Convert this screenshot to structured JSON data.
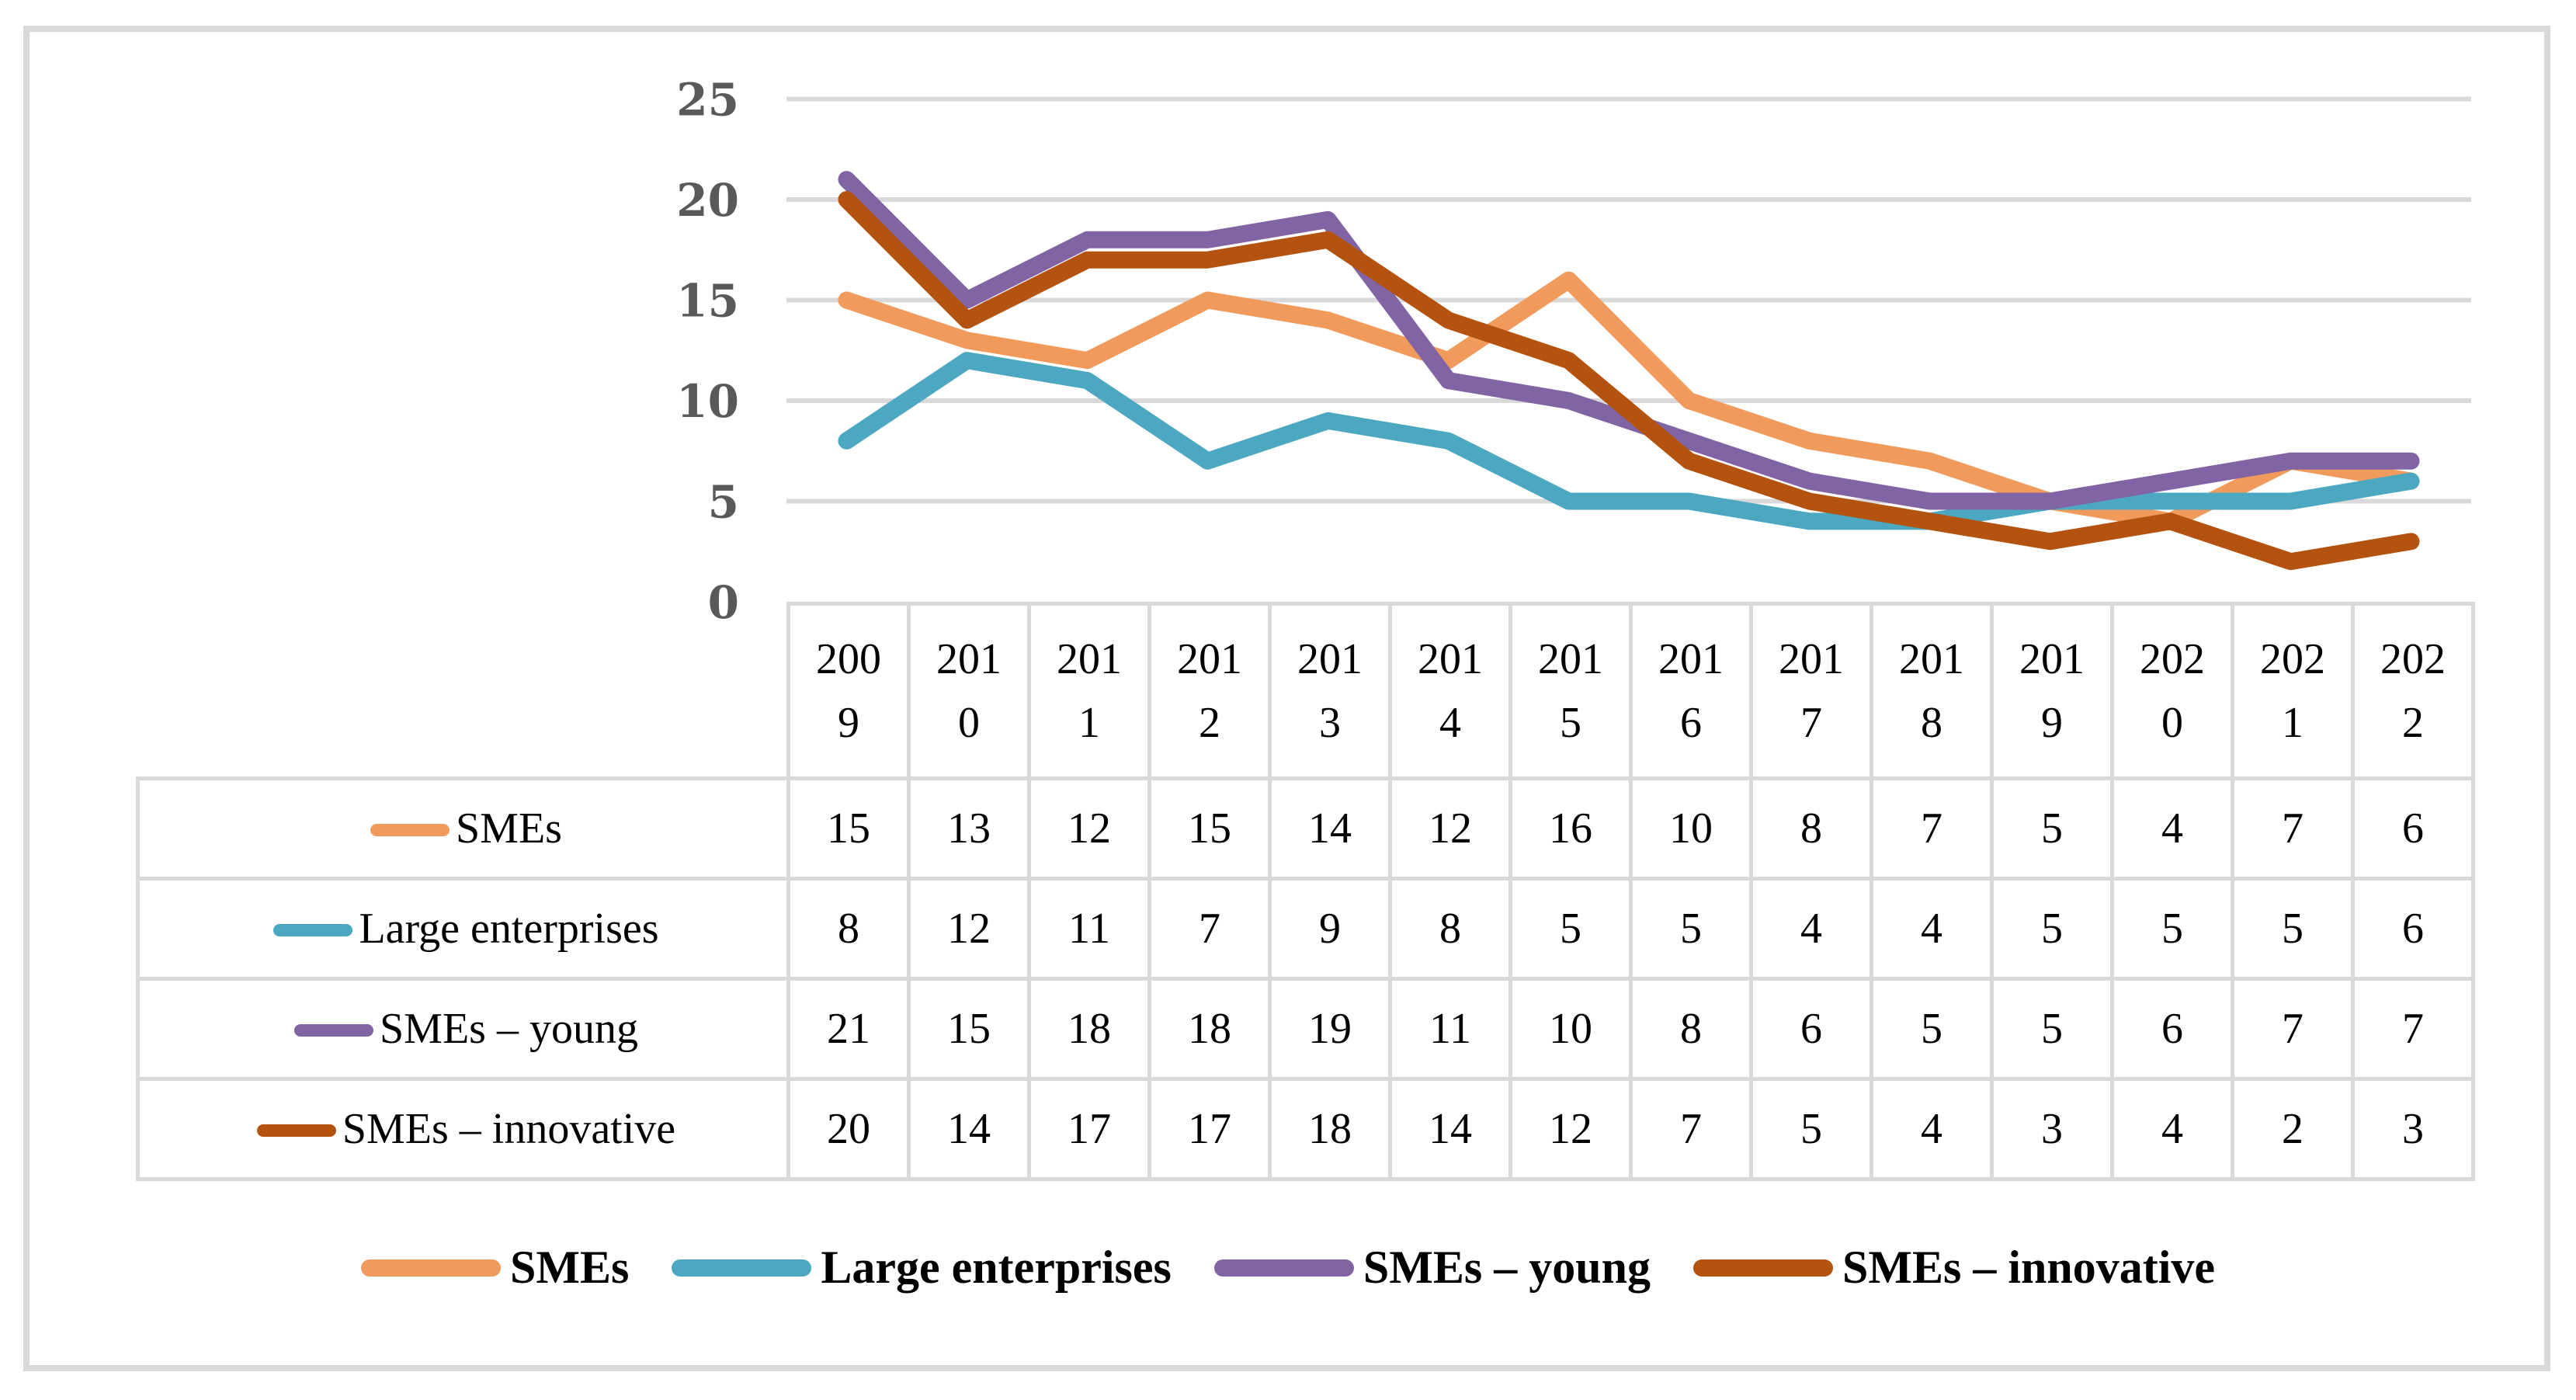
{
  "chart_data": {
    "type": "line",
    "title": "",
    "xlabel": "",
    "ylabel": "",
    "categories": [
      "2009",
      "2010",
      "2011",
      "2012",
      "2013",
      "2014",
      "2015",
      "2016",
      "2017",
      "2018",
      "2019",
      "2020",
      "2021",
      "2022"
    ],
    "series": [
      {
        "name": "SMEs",
        "color": "#F09A5C",
        "values": [
          15,
          13,
          12,
          15,
          14,
          12,
          16,
          10,
          8,
          7,
          5,
          4,
          7,
          6
        ]
      },
      {
        "name": "Large enterprises",
        "color": "#4BA8C0",
        "values": [
          8,
          12,
          11,
          7,
          9,
          8,
          5,
          5,
          4,
          4,
          5,
          5,
          5,
          6
        ]
      },
      {
        "name": "SMEs – young",
        "color": "#8064A4",
        "values": [
          21,
          15,
          18,
          18,
          19,
          11,
          10,
          8,
          6,
          5,
          5,
          6,
          7,
          7
        ]
      },
      {
        "name": "SMEs – innovative",
        "color": "#B4530F",
        "values": [
          20,
          14,
          17,
          17,
          18,
          14,
          12,
          7,
          5,
          4,
          3,
          4,
          2,
          3
        ]
      }
    ],
    "ylim": [
      0,
      25
    ],
    "yticks": [
      0,
      5,
      10,
      15,
      20,
      25
    ],
    "ytick_labels": [
      "0",
      "5",
      "10",
      "15",
      "20",
      "25"
    ],
    "grid": true,
    "data_table_shown": true,
    "legend_position": "bottom"
  },
  "colors": {
    "grid": "#D9D9D9",
    "table_border": "#D9D9D9",
    "frame_border": "#D9D9D9",
    "axis_text": "#595959",
    "text": "#000000",
    "background": "#ffffff"
  }
}
